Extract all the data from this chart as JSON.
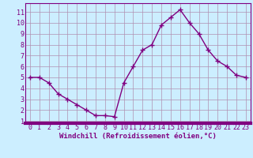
{
  "x": [
    0,
    1,
    2,
    3,
    4,
    5,
    6,
    7,
    8,
    9,
    10,
    11,
    12,
    13,
    14,
    15,
    16,
    17,
    18,
    19,
    20,
    21,
    22,
    23
  ],
  "y": [
    5.0,
    5.0,
    4.5,
    3.5,
    3.0,
    2.5,
    2.0,
    1.5,
    1.5,
    1.4,
    4.5,
    6.0,
    7.5,
    8.0,
    9.8,
    10.5,
    11.2,
    10.0,
    9.0,
    7.5,
    6.5,
    6.0,
    5.2,
    5.0
  ],
  "line_color": "#800080",
  "marker": "+",
  "marker_size": 4,
  "linewidth": 1.0,
  "xlabel": "Windchill (Refroidissement éolien,°C)",
  "xlabel_fontsize": 6.5,
  "bg_color": "#cceeff",
  "grid_color": "#b090b0",
  "tick_label_fontsize": 6.0,
  "tick_color": "#800080",
  "xlim": [
    -0.5,
    23.5
  ],
  "ylim": [
    0.8,
    11.8
  ],
  "yticks": [
    1,
    2,
    3,
    4,
    5,
    6,
    7,
    8,
    9,
    10,
    11
  ],
  "xticks": [
    0,
    1,
    2,
    3,
    4,
    5,
    6,
    7,
    8,
    9,
    10,
    11,
    12,
    13,
    14,
    15,
    16,
    17,
    18,
    19,
    20,
    21,
    22,
    23
  ],
  "spine_color": "#800080",
  "bottom_bar_color": "#800080"
}
